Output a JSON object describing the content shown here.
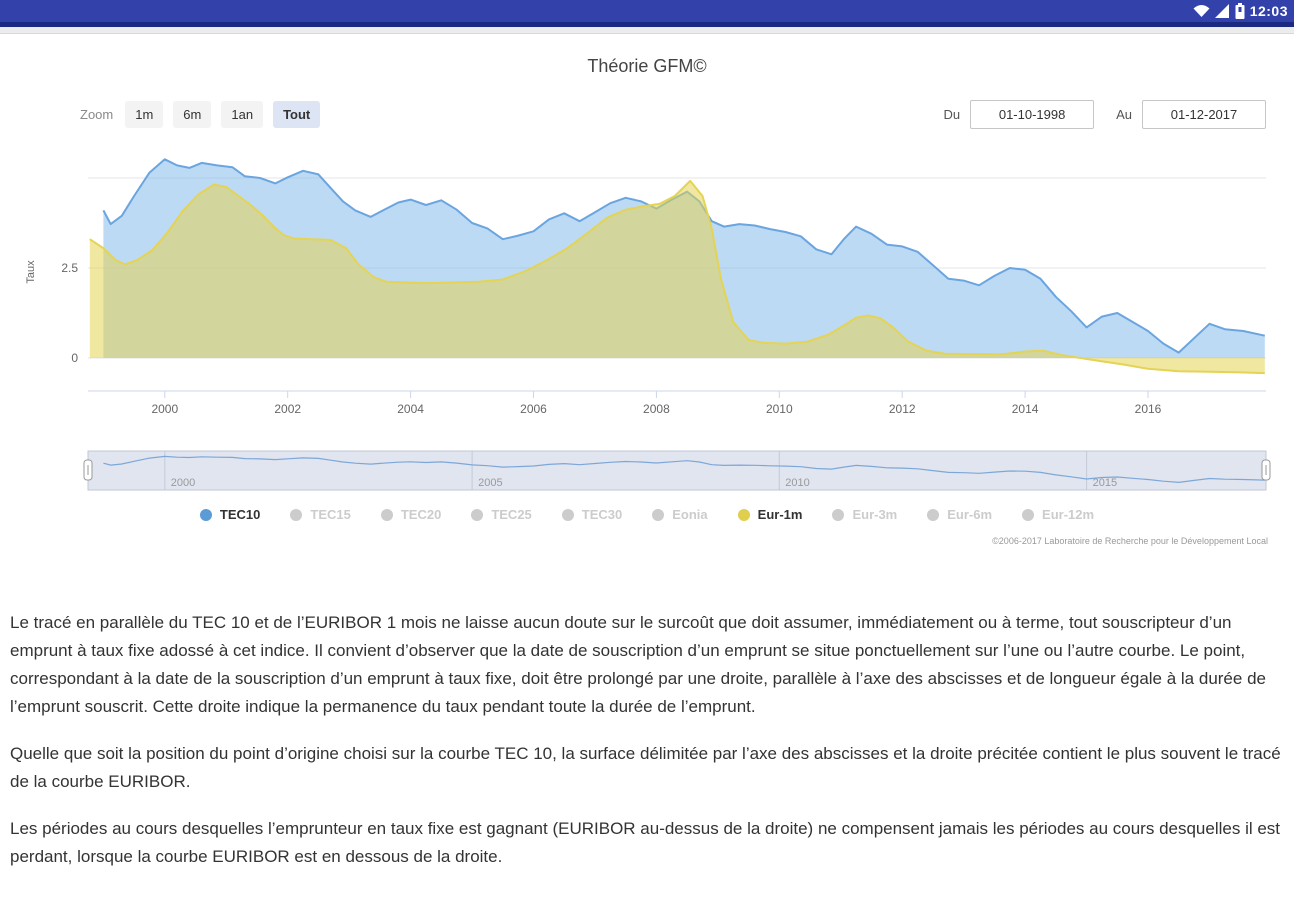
{
  "status_bar": {
    "time": "12:03",
    "icons": [
      "wifi-icon",
      "signal-icon",
      "battery-icon"
    ]
  },
  "chart": {
    "title": "Théorie GFM©",
    "zoom_controls": {
      "label": "Zoom",
      "buttons": [
        {
          "label": "1m",
          "selected": false
        },
        {
          "label": "6m",
          "selected": false
        },
        {
          "label": "1an",
          "selected": false
        },
        {
          "label": "Tout",
          "selected": true
        }
      ]
    },
    "date_range": {
      "from_label": "Du",
      "from_value": "01-10-1998",
      "to_label": "Au",
      "to_value": "01-12-2017"
    },
    "legend_inactive_color": "#cccccc",
    "legend": [
      {
        "label": "TEC10",
        "color": "#5b9cd6",
        "active": true
      },
      {
        "label": "TEC15",
        "color": "#cccccc",
        "active": false
      },
      {
        "label": "TEC20",
        "color": "#cccccc",
        "active": false
      },
      {
        "label": "TEC25",
        "color": "#cccccc",
        "active": false
      },
      {
        "label": "TEC30",
        "color": "#cccccc",
        "active": false
      },
      {
        "label": "Eonia",
        "color": "#cccccc",
        "active": false
      },
      {
        "label": "Eur-1m",
        "color": "#e0cf4e",
        "active": true
      },
      {
        "label": "Eur-3m",
        "color": "#cccccc",
        "active": false
      },
      {
        "label": "Eur-6m",
        "color": "#cccccc",
        "active": false
      },
      {
        "label": "Eur-12m",
        "color": "#cccccc",
        "active": false
      }
    ],
    "credits": "©2006-2017 Laboratoire de Recherche pour le Développement Local"
  },
  "chart_data": {
    "type": "area",
    "title": "Théorie GFM©",
    "ylabel": "Taux",
    "x_range": [
      1998.75,
      2017.92
    ],
    "y_plot_range": [
      -0.92,
      5.9
    ],
    "y_gridlines": [
      0,
      2.5,
      5
    ],
    "y_tick_labels": [
      {
        "value": 0,
        "label": "0"
      },
      {
        "value": 2.5,
        "label": "2.5"
      }
    ],
    "x_ticks": [
      2000,
      2002,
      2004,
      2006,
      2008,
      2010,
      2012,
      2014,
      2016
    ],
    "navigator_ticks": [
      2000,
      2005,
      2010,
      2015
    ],
    "series": [
      {
        "name": "TEC10",
        "color": "#6aa5e0",
        "fill": "rgba(124,181,236,0.5)",
        "points": [
          [
            1999.0,
            4.1
          ],
          [
            1999.12,
            3.72
          ],
          [
            1999.3,
            3.95
          ],
          [
            1999.5,
            4.5
          ],
          [
            1999.75,
            5.15
          ],
          [
            2000.0,
            5.52
          ],
          [
            2000.2,
            5.35
          ],
          [
            2000.4,
            5.28
          ],
          [
            2000.6,
            5.42
          ],
          [
            2000.85,
            5.35
          ],
          [
            2001.1,
            5.3
          ],
          [
            2001.3,
            5.05
          ],
          [
            2001.55,
            5.0
          ],
          [
            2001.8,
            4.85
          ],
          [
            2002.0,
            5.02
          ],
          [
            2002.25,
            5.2
          ],
          [
            2002.5,
            5.1
          ],
          [
            2002.7,
            4.72
          ],
          [
            2002.9,
            4.35
          ],
          [
            2003.1,
            4.1
          ],
          [
            2003.35,
            3.92
          ],
          [
            2003.55,
            4.1
          ],
          [
            2003.8,
            4.32
          ],
          [
            2004.0,
            4.4
          ],
          [
            2004.25,
            4.25
          ],
          [
            2004.5,
            4.38
          ],
          [
            2004.75,
            4.12
          ],
          [
            2005.0,
            3.75
          ],
          [
            2005.25,
            3.6
          ],
          [
            2005.5,
            3.3
          ],
          [
            2005.75,
            3.4
          ],
          [
            2006.0,
            3.52
          ],
          [
            2006.25,
            3.85
          ],
          [
            2006.5,
            4.02
          ],
          [
            2006.75,
            3.8
          ],
          [
            2007.0,
            4.05
          ],
          [
            2007.25,
            4.3
          ],
          [
            2007.5,
            4.45
          ],
          [
            2007.75,
            4.35
          ],
          [
            2008.0,
            4.15
          ],
          [
            2008.25,
            4.4
          ],
          [
            2008.5,
            4.62
          ],
          [
            2008.7,
            4.35
          ],
          [
            2008.9,
            3.8
          ],
          [
            2009.1,
            3.65
          ],
          [
            2009.35,
            3.72
          ],
          [
            2009.6,
            3.68
          ],
          [
            2009.85,
            3.58
          ],
          [
            2010.1,
            3.5
          ],
          [
            2010.35,
            3.38
          ],
          [
            2010.6,
            3.02
          ],
          [
            2010.85,
            2.88
          ],
          [
            2011.05,
            3.3
          ],
          [
            2011.25,
            3.65
          ],
          [
            2011.5,
            3.45
          ],
          [
            2011.75,
            3.15
          ],
          [
            2012.0,
            3.1
          ],
          [
            2012.25,
            2.95
          ],
          [
            2012.5,
            2.58
          ],
          [
            2012.75,
            2.2
          ],
          [
            2013.0,
            2.15
          ],
          [
            2013.25,
            2.02
          ],
          [
            2013.5,
            2.28
          ],
          [
            2013.75,
            2.5
          ],
          [
            2014.0,
            2.45
          ],
          [
            2014.25,
            2.2
          ],
          [
            2014.5,
            1.7
          ],
          [
            2014.75,
            1.3
          ],
          [
            2015.0,
            0.85
          ],
          [
            2015.25,
            1.15
          ],
          [
            2015.5,
            1.25
          ],
          [
            2015.75,
            1.0
          ],
          [
            2016.0,
            0.75
          ],
          [
            2016.25,
            0.4
          ],
          [
            2016.5,
            0.15
          ],
          [
            2016.75,
            0.55
          ],
          [
            2017.0,
            0.95
          ],
          [
            2017.25,
            0.8
          ],
          [
            2017.55,
            0.75
          ],
          [
            2017.9,
            0.62
          ]
        ]
      },
      {
        "name": "Eur-1m",
        "color": "#e4d354",
        "fill": "rgba(228,211,84,0.55)",
        "points": [
          [
            1998.78,
            3.3
          ],
          [
            1999.0,
            3.05
          ],
          [
            1999.2,
            2.72
          ],
          [
            1999.35,
            2.6
          ],
          [
            1999.55,
            2.72
          ],
          [
            1999.8,
            3.0
          ],
          [
            2000.05,
            3.5
          ],
          [
            2000.3,
            4.1
          ],
          [
            2000.55,
            4.55
          ],
          [
            2000.8,
            4.82
          ],
          [
            2001.0,
            4.75
          ],
          [
            2001.2,
            4.5
          ],
          [
            2001.4,
            4.25
          ],
          [
            2001.6,
            3.95
          ],
          [
            2001.8,
            3.6
          ],
          [
            2001.95,
            3.4
          ],
          [
            2002.1,
            3.32
          ],
          [
            2002.4,
            3.3
          ],
          [
            2002.7,
            3.28
          ],
          [
            2002.95,
            3.05
          ],
          [
            2003.15,
            2.6
          ],
          [
            2003.4,
            2.25
          ],
          [
            2003.6,
            2.12
          ],
          [
            2003.9,
            2.1
          ],
          [
            2004.3,
            2.08
          ],
          [
            2004.7,
            2.1
          ],
          [
            2005.1,
            2.12
          ],
          [
            2005.5,
            2.18
          ],
          [
            2005.85,
            2.4
          ],
          [
            2006.2,
            2.7
          ],
          [
            2006.55,
            3.05
          ],
          [
            2006.9,
            3.5
          ],
          [
            2007.2,
            3.9
          ],
          [
            2007.5,
            4.12
          ],
          [
            2007.8,
            4.22
          ],
          [
            2008.05,
            4.28
          ],
          [
            2008.3,
            4.5
          ],
          [
            2008.55,
            4.92
          ],
          [
            2008.75,
            4.5
          ],
          [
            2008.9,
            3.6
          ],
          [
            2009.05,
            2.2
          ],
          [
            2009.25,
            1.0
          ],
          [
            2009.5,
            0.5
          ],
          [
            2009.75,
            0.42
          ],
          [
            2010.1,
            0.4
          ],
          [
            2010.45,
            0.45
          ],
          [
            2010.8,
            0.65
          ],
          [
            2011.05,
            0.9
          ],
          [
            2011.25,
            1.12
          ],
          [
            2011.45,
            1.18
          ],
          [
            2011.65,
            1.1
          ],
          [
            2011.85,
            0.85
          ],
          [
            2012.1,
            0.45
          ],
          [
            2012.4,
            0.2
          ],
          [
            2012.7,
            0.12
          ],
          [
            2013.1,
            0.11
          ],
          [
            2013.6,
            0.1
          ],
          [
            2014.0,
            0.18
          ],
          [
            2014.3,
            0.2
          ],
          [
            2014.6,
            0.08
          ],
          [
            2014.9,
            0.0
          ],
          [
            2015.2,
            -0.08
          ],
          [
            2015.6,
            -0.18
          ],
          [
            2016.0,
            -0.3
          ],
          [
            2016.5,
            -0.37
          ],
          [
            2017.0,
            -0.38
          ],
          [
            2017.5,
            -0.4
          ],
          [
            2017.9,
            -0.42
          ]
        ]
      }
    ]
  },
  "body": {
    "paragraphs": [
      "Le tracé en parallèle du TEC 10 et de l’EURIBOR 1 mois ne laisse aucun doute sur le surcoût que doit assumer, immédiatement ou à terme, tout souscripteur d’un emprunt à taux fixe adossé à cet indice. Il convient d’observer que la date de souscription d’un emprunt se situe ponctuellement sur l’une ou l’autre courbe. Le point, correspondant à la date de la souscription d’un emprunt à taux fixe, doit être prolongé par une droite, parallèle à l’axe des abscisses et de longueur égale à la durée de l’emprunt souscrit. Cette droite indique la permanence du taux pendant toute la durée de l’emprunt.",
      "Quelle que soit la position du point d’origine choisi sur la courbe TEC 10, la surface délimitée par l’axe des abscisses et la droite précitée contient le plus souvent le tracé de la courbe EURIBOR.",
      "Les périodes au cours desquelles l’emprunteur en taux fixe est gagnant (EURIBOR au-dessus de la droite) ne compensent jamais les périodes au cours desquelles il est perdant, lorsque la courbe EURIBOR est en dessous de la droite."
    ]
  }
}
